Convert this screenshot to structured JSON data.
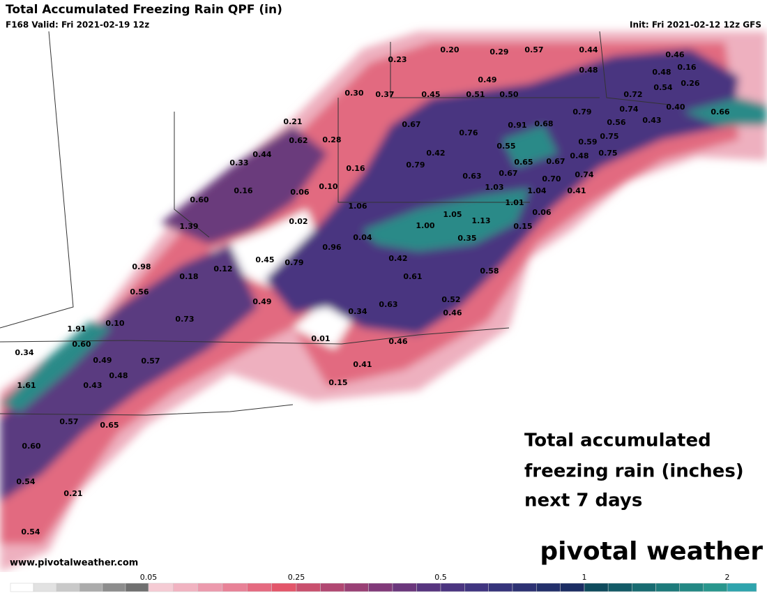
{
  "header": {
    "title": "Total Accumulated Freezing Rain QPF (in)",
    "valid": "F168 Valid: Fri 2021-02-19 12z",
    "init": "Init: Fri 2021-02-12 12z GFS"
  },
  "labels": [
    "0.20",
    "0.29",
    "0.57",
    "0.44",
    "0.46",
    "0.23",
    "0.48",
    "0.48",
    "0.16",
    "0.49",
    "0.54",
    "0.26",
    "0.30",
    "0.37",
    "0.45",
    "0.51",
    "0.50",
    "0.72",
    "0.74",
    "0.40",
    "0.66",
    "0.79",
    "0.21",
    "0.67",
    "0.76",
    "0.91",
    "0.68",
    "0.56",
    "0.43",
    "0.62",
    "0.28",
    "0.55",
    "0.75",
    "0.59",
    "0.44",
    "0.42",
    "0.75",
    "0.48",
    "0.33",
    "0.79",
    "0.65",
    "0.67",
    "0.16",
    "0.63",
    "0.67",
    "0.74",
    "0.16",
    "0.06",
    "0.10",
    "1.03",
    "0.70",
    "1.04",
    "0.41",
    "0.60",
    "1.06",
    "1.01",
    "0.02",
    "1.05",
    "1.13",
    "1.00",
    "0.06",
    "0.15",
    "1.39",
    "0.04",
    "0.35",
    "0.96",
    "0.42",
    "0.45",
    "0.79",
    "0.12",
    "0.98",
    "0.18",
    "0.61",
    "0.58",
    "0.56",
    "0.49",
    "0.52",
    "0.63",
    "0.34",
    "0.46",
    "0.73",
    "0.10",
    "1.91",
    "0.01",
    "0.46",
    "0.60",
    "0.34",
    "0.49",
    "0.57",
    "0.41",
    "0.48",
    "1.61",
    "0.43",
    "0.15",
    "0.57",
    "0.65",
    "0.60",
    "0.54",
    "0.21",
    "0.54"
  ],
  "annotation": [
    "Total accumulated",
    "freezing rain (inches)",
    "next 7 days"
  ],
  "logo": "pivotal weather",
  "website": "www.pivotalweather.com",
  "colorbar": {
    "ticks": [
      "0.05",
      "0.25",
      "0.5",
      "1",
      "2"
    ],
    "colors": [
      "#ffffff",
      "#e2e2e2",
      "#c9c9c9",
      "#ababab",
      "#8d8d8d",
      "#707070",
      "#f5cbd4",
      "#f1b3c1",
      "#ec9aad",
      "#e88297",
      "#e56a80",
      "#e3566a",
      "#c9506e",
      "#b14872",
      "#994075",
      "#813a79",
      "#6b377c",
      "#57357f",
      "#4b3580",
      "#403580",
      "#36347b",
      "#2d3273",
      "#23306b",
      "#1b2d63",
      "#0f4b5d",
      "#135b67",
      "#186b71",
      "#1d7a7b",
      "#238884",
      "#29968d",
      "#2fa4ad"
    ]
  }
}
